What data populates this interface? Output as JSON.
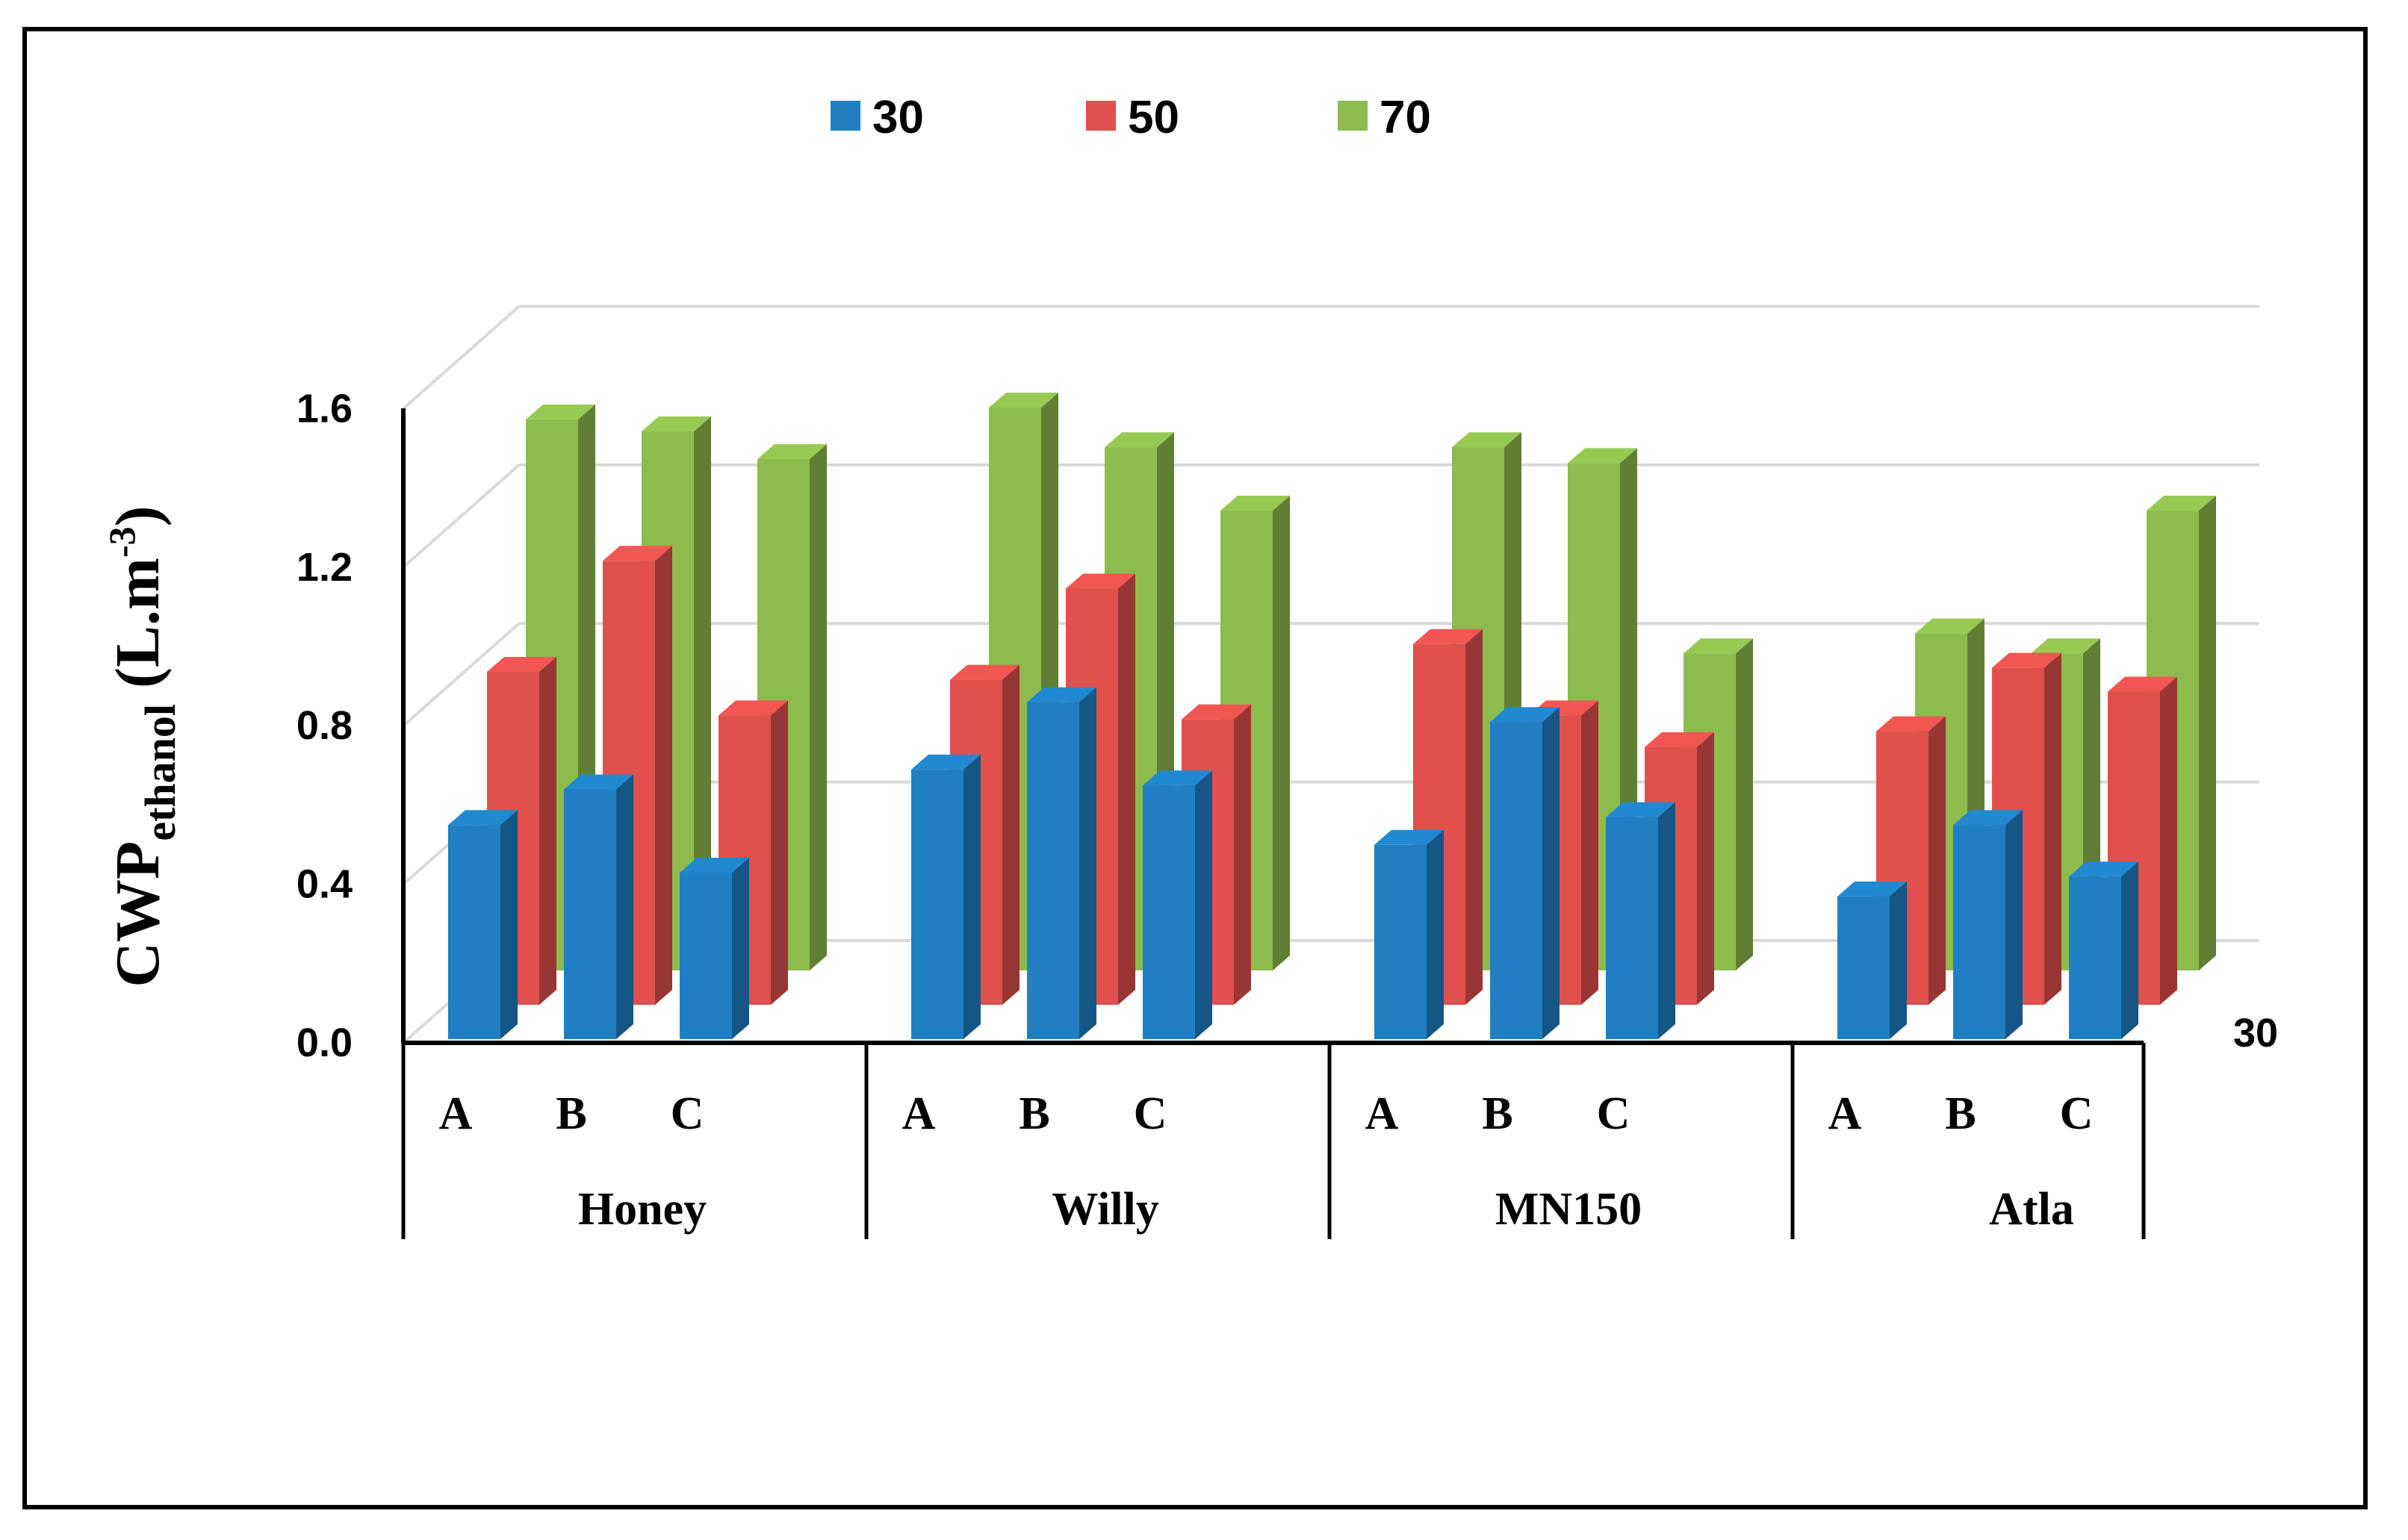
{
  "chart_data": {
    "type": "bar",
    "subtype": "3d-clustered-column",
    "ylabel": {
      "main": "CWP",
      "sub": "ethanol",
      "unit_open": " (L.m",
      "sup": "-3",
      "unit_close": ")"
    },
    "ylim": [
      0,
      1.6
    ],
    "yticks": [
      "0.0",
      "0.4",
      "0.8",
      "1.2",
      "1.6"
    ],
    "ytick_values": [
      0,
      0.4,
      0.8,
      1.2,
      1.6
    ],
    "depth_axis_label": "30",
    "legend": [
      {
        "name": "30",
        "color": "#1F7FC2"
      },
      {
        "name": "50",
        "color": "#E0504C"
      },
      {
        "name": "70",
        "color": "#8DBB4D"
      }
    ],
    "groups": [
      {
        "name": "Honey",
        "subcategories": [
          "A",
          "B",
          "C"
        ]
      },
      {
        "name": "Willy",
        "subcategories": [
          "A",
          "B",
          "C"
        ]
      },
      {
        "name": "MN150",
        "subcategories": [
          "A",
          "B",
          "C"
        ]
      },
      {
        "name": "Atla",
        "subcategories": [
          "A",
          "B",
          "C"
        ]
      }
    ],
    "series": [
      {
        "name": "30",
        "values": [
          0.54,
          0.63,
          0.42,
          0.68,
          0.85,
          0.64,
          0.49,
          0.8,
          0.56,
          0.36,
          0.54,
          0.41
        ]
      },
      {
        "name": "50",
        "values": [
          0.84,
          1.12,
          0.73,
          0.82,
          1.05,
          0.72,
          0.91,
          0.73,
          0.65,
          0.69,
          0.85,
          0.79
        ]
      },
      {
        "name": "70",
        "values": [
          1.39,
          1.36,
          1.29,
          1.42,
          1.32,
          1.16,
          1.32,
          1.28,
          0.8,
          0.85,
          0.8,
          1.16
        ]
      }
    ]
  }
}
